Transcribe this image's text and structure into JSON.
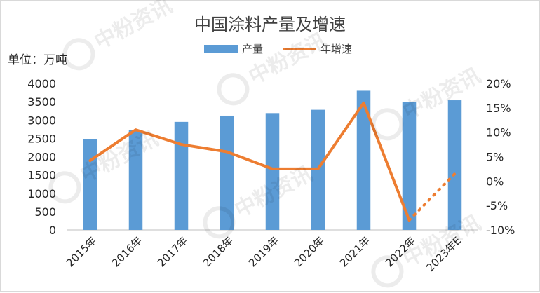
{
  "chart_data": {
    "type": "bar",
    "title": "中国涂料产量及增速",
    "unit_label": "单位：万吨",
    "categories": [
      "2015年",
      "2016年",
      "2017年",
      "2018年",
      "2019年",
      "2020年",
      "2021年",
      "2022年",
      "2023年E"
    ],
    "series": [
      {
        "name": "产量",
        "type": "bar",
        "axis": "left",
        "color": "#5b9bd5",
        "values": [
          2470,
          2730,
          2950,
          3120,
          3190,
          3280,
          3800,
          3500,
          3540
        ]
      },
      {
        "name": "年增速",
        "type": "line",
        "axis": "right",
        "color": "#ed7d31",
        "values": [
          4.2,
          10.5,
          7.5,
          6.0,
          2.5,
          2.5,
          16.0,
          -8.0,
          1.5
        ],
        "dotted_last_segment": true
      }
    ],
    "y_left": {
      "min": 0,
      "max": 4000,
      "ticks": [
        "0",
        "500",
        "1000",
        "1500",
        "2000",
        "2500",
        "3000",
        "3500",
        "4000"
      ]
    },
    "y_right": {
      "min": -10,
      "max": 20,
      "ticks": [
        "-10%",
        "-5%",
        "0%",
        "5%",
        "10%",
        "15%",
        "20%"
      ]
    },
    "grid": false,
    "legend_position": "top-center"
  },
  "watermark": "中粉资讯"
}
